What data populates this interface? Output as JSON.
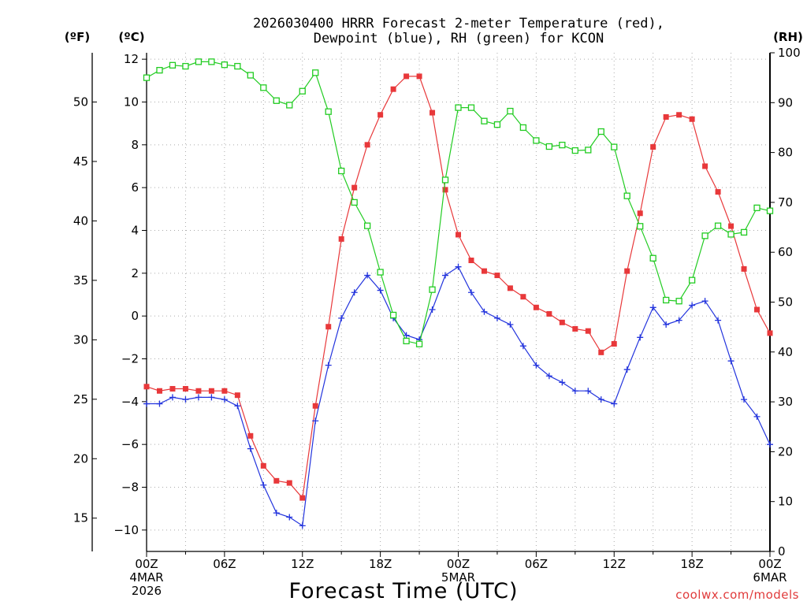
{
  "chart_data": {
    "type": "line",
    "title": [
      "2026030400 HRRR Forecast 2-meter Temperature (red),",
      "Dewpoint (blue), RH (green) for KCON"
    ],
    "xlabel": "Forecast Time (UTC)",
    "credit": "coolwx.com/models",
    "units": {
      "fahrenheit": "(ºF)",
      "celsius": "(ºC)",
      "rh": "(RH)"
    },
    "x": [
      0,
      1,
      2,
      3,
      4,
      5,
      6,
      7,
      8,
      9,
      10,
      11,
      12,
      13,
      14,
      15,
      16,
      17,
      18,
      19,
      20,
      21,
      22,
      23,
      24,
      25,
      26,
      27,
      28,
      29,
      30,
      31,
      32,
      33,
      34,
      35,
      36,
      37,
      38,
      39,
      40,
      41,
      42,
      43,
      44,
      45,
      46,
      47,
      48
    ],
    "x_ticks": [
      {
        "hour": 0,
        "lines": [
          "00Z",
          "4MAR",
          "2026"
        ]
      },
      {
        "hour": 6,
        "lines": [
          "06Z"
        ]
      },
      {
        "hour": 12,
        "lines": [
          "12Z"
        ]
      },
      {
        "hour": 18,
        "lines": [
          "18Z"
        ]
      },
      {
        "hour": 24,
        "lines": [
          "00Z",
          "5MAR"
        ]
      },
      {
        "hour": 30,
        "lines": [
          "06Z"
        ]
      },
      {
        "hour": 36,
        "lines": [
          "12Z"
        ]
      },
      {
        "hour": 42,
        "lines": [
          "18Z"
        ]
      },
      {
        "hour": 48,
        "lines": [
          "00Z",
          "6MAR"
        ]
      }
    ],
    "xlim": [
      0,
      48
    ],
    "ylim_celsius": [
      -11,
      12.3
    ],
    "ylim_rh": [
      0,
      100
    ],
    "celsius_ticks": [
      -10,
      -8,
      -6,
      -4,
      -2,
      0,
      2,
      4,
      6,
      8,
      10,
      12
    ],
    "celsius_tick_labels": [
      "−10",
      "−8",
      "−6",
      "−4",
      "−2",
      "0",
      "2",
      "4",
      "6",
      "8",
      "10",
      "12"
    ],
    "fahrenheit_ticks": [
      15,
      20,
      25,
      30,
      35,
      40,
      45,
      50
    ],
    "rh_ticks": [
      0,
      10,
      20,
      30,
      40,
      50,
      60,
      70,
      80,
      90,
      100
    ],
    "grid": true,
    "series": [
      {
        "name": "Temperature",
        "axis": "celsius",
        "color": "#e8383a",
        "marker": "filled-square",
        "values": [
          -3.3,
          -3.5,
          -3.4,
          -3.4,
          -3.5,
          -3.5,
          -3.5,
          -3.7,
          -5.6,
          -7.0,
          -7.7,
          -7.8,
          -8.5,
          -4.2,
          -0.5,
          3.6,
          6.0,
          8.0,
          9.4,
          10.6,
          11.2,
          11.2,
          9.5,
          5.9,
          3.8,
          2.6,
          2.1,
          1.9,
          1.3,
          0.9,
          0.4,
          0.1,
          -0.3,
          -0.6,
          -0.7,
          -1.7,
          -1.3,
          2.1,
          4.8,
          7.9,
          9.3,
          9.4,
          9.2,
          7.0,
          5.8,
          4.2,
          2.2,
          0.3,
          -0.8
        ]
      },
      {
        "name": "Dewpoint",
        "axis": "celsius",
        "color": "#2233dd",
        "marker": "plus",
        "values": [
          -4.1,
          -4.1,
          -3.8,
          -3.9,
          -3.8,
          -3.8,
          -3.9,
          -4.2,
          -6.2,
          -7.9,
          -9.2,
          -9.4,
          -9.8,
          -4.9,
          -2.3,
          -0.1,
          1.1,
          1.9,
          1.2,
          -0.1,
          -0.9,
          -1.1,
          0.3,
          1.9,
          2.3,
          1.1,
          0.2,
          -0.1,
          -0.4,
          -1.4,
          -2.3,
          -2.8,
          -3.1,
          -3.5,
          -3.5,
          -3.9,
          -4.1,
          -2.5,
          -1.0,
          0.4,
          -0.4,
          -0.2,
          0.5,
          0.7,
          -0.2,
          -2.1,
          -3.9,
          -4.7,
          -6.0
        ]
      },
      {
        "name": "RH",
        "axis": "rh",
        "color": "#22cc22",
        "marker": "open-square",
        "values": [
          95,
          96.5,
          97.5,
          97.3,
          98.2,
          98.2,
          97.6,
          97.3,
          95.5,
          93,
          90.4,
          89.5,
          92.3,
          96,
          88.2,
          76.3,
          70,
          65.3,
          56,
          47.4,
          42.2,
          41.6,
          52.5,
          74.5,
          89,
          89,
          86.3,
          85.6,
          88.3,
          85,
          82.4,
          81.2,
          81.5,
          80.4,
          80.5,
          84.2,
          81.1,
          71.3,
          65.2,
          58.8,
          50.4,
          50.2,
          54.4,
          63.3,
          65.3,
          63.6,
          64,
          68.9,
          68.3
        ]
      }
    ]
  }
}
